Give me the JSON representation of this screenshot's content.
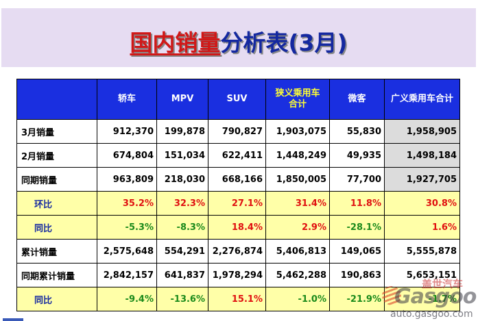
{
  "title": {
    "part1": "国内销量",
    "part2": "分析表(3月)"
  },
  "columns": [
    "轿车",
    "MPV",
    "SUV",
    "狭义乘用车\n合计",
    "微客",
    "广义乘用车合计"
  ],
  "rows": [
    {
      "label": "3月销量",
      "kind": "white",
      "cells": [
        "912,370",
        "199,878",
        "790,827",
        "1,903,075",
        "55,830",
        "1,958,905"
      ]
    },
    {
      "label": "2月销量",
      "kind": "white",
      "cells": [
        "674,804",
        "151,034",
        "622,411",
        "1,448,249",
        "49,935",
        "1,498,184"
      ]
    },
    {
      "label": "同期销量",
      "kind": "white",
      "cells": [
        "963,809",
        "218,030",
        "668,166",
        "1,850,005",
        "77,700",
        "1,927,705"
      ]
    },
    {
      "label": "环比",
      "kind": "yellow",
      "cells": [
        "35.2%",
        "32.3%",
        "27.1%",
        "31.4%",
        "11.8%",
        "30.8%"
      ]
    },
    {
      "label": "同比",
      "kind": "yellow",
      "cells": [
        "-5.3%",
        "-8.3%",
        "18.4%",
        "2.9%",
        "-28.1%",
        "1.6%"
      ]
    },
    {
      "label": "累计销量",
      "kind": "white",
      "cells": [
        "2,575,648",
        "554,291",
        "2,276,874",
        "5,406,813",
        "149,065",
        "5,555,878"
      ]
    },
    {
      "label": "同期累计销量",
      "kind": "white",
      "cells": [
        "2,842,157",
        "641,837",
        "1,978,294",
        "5,462,288",
        "190,863",
        "5,653,151"
      ]
    },
    {
      "label": "同比",
      "kind": "yellow",
      "cells": [
        "-9.4%",
        "-13.6%",
        "15.1%",
        "-1.0%",
        "-21.9%",
        "-1.7%"
      ]
    }
  ],
  "colors": {
    "header_bg": "#1a2fe0",
    "header_highlight": "#ffff33",
    "positive": "#e01010",
    "negative": "#1b8a1b",
    "yellow_row": "#ffffa8"
  },
  "watermark": {
    "brand": "Gasgoo",
    "cn": "盖世汽车",
    "url": "auto.gasgoo.com"
  }
}
